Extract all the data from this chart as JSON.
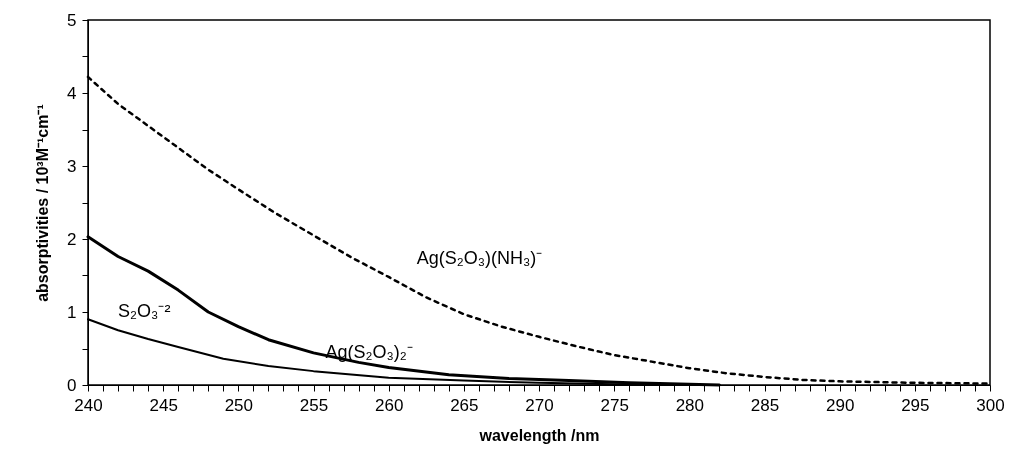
{
  "chart_data": {
    "type": "line",
    "xlabel": "wavelength /nm",
    "ylabel": "absorptivities / 10³M⁻¹cm⁻¹",
    "xlim": [
      240,
      300
    ],
    "ylim": [
      0,
      5
    ],
    "xticks": [
      240,
      {
        "value": 241,
        "label": null
      },
      {
        "value": 242,
        "label": null
      },
      {
        "value": 243,
        "label": null
      },
      {
        "value": 244,
        "label": null
      },
      245,
      {
        "value": 246,
        "label": null
      },
      {
        "value": 247,
        "label": null
      },
      {
        "value": 248,
        "label": null
      },
      {
        "value": 249,
        "label": null
      },
      250,
      {
        "value": 251,
        "label": null
      },
      {
        "value": 252,
        "label": null
      },
      {
        "value": 253,
        "label": null
      },
      {
        "value": 254,
        "label": null
      },
      255,
      {
        "value": 256,
        "label": null
      },
      {
        "value": 257,
        "label": null
      },
      {
        "value": 258,
        "label": null
      },
      {
        "value": 259,
        "label": null
      },
      260,
      {
        "value": 261,
        "label": null
      },
      {
        "value": 262,
        "label": null
      },
      {
        "value": 263,
        "label": null
      },
      {
        "value": 264,
        "label": null
      },
      265,
      {
        "value": 266,
        "label": null
      },
      {
        "value": 267,
        "label": null
      },
      {
        "value": 268,
        "label": null
      },
      {
        "value": 269,
        "label": null
      },
      270,
      {
        "value": 271,
        "label": null
      },
      {
        "value": 272,
        "label": null
      },
      {
        "value": 273,
        "label": null
      },
      {
        "value": 274,
        "label": null
      },
      275,
      {
        "value": 276,
        "label": null
      },
      {
        "value": 277,
        "label": null
      },
      {
        "value": 278,
        "label": null
      },
      {
        "value": 279,
        "label": null
      },
      280,
      {
        "value": 281,
        "label": null
      },
      {
        "value": 282,
        "label": null
      },
      {
        "value": 283,
        "label": null
      },
      {
        "value": 284,
        "label": null
      },
      285,
      {
        "value": 286,
        "label": null
      },
      {
        "value": 287,
        "label": null
      },
      {
        "value": 288,
        "label": null
      },
      {
        "value": 289,
        "label": null
      },
      290,
      {
        "value": 291,
        "label": null
      },
      {
        "value": 292,
        "label": null
      },
      {
        "value": 293,
        "label": null
      },
      {
        "value": 294,
        "label": null
      },
      295,
      {
        "value": 296,
        "label": null
      },
      {
        "value": 297,
        "label": null
      },
      {
        "value": 298,
        "label": null
      },
      {
        "value": 299,
        "label": null
      },
      300
    ],
    "yticks": [
      0,
      {
        "value": 0.5,
        "label": null
      },
      1,
      {
        "value": 1.5,
        "label": null
      },
      2,
      {
        "value": 2.5,
        "label": null
      },
      3,
      {
        "value": 3.5,
        "label": null
      },
      4,
      {
        "value": 4.5,
        "label": null
      },
      5
    ],
    "series": [
      {
        "name": "S₂O₃⁻²",
        "color": "#000000",
        "line_style": "solid",
        "x": [
          240,
          242,
          244,
          246,
          249,
          252,
          255,
          260,
          265,
          270,
          275,
          280
        ],
        "values": [
          0.9,
          0.75,
          0.63,
          0.52,
          0.36,
          0.26,
          0.19,
          0.1,
          0.06,
          0.03,
          0.01,
          0
        ]
      },
      {
        "name": "Ag(S₂O₃)₂⁻",
        "color": "#000000",
        "line_style": "solid",
        "x": [
          240,
          242,
          244,
          246,
          248,
          250,
          252,
          255,
          258,
          260,
          264,
          268,
          272,
          276,
          280,
          282
        ],
        "values": [
          2.03,
          1.76,
          1.56,
          1.3,
          1.0,
          0.8,
          0.62,
          0.44,
          0.31,
          0.24,
          0.14,
          0.09,
          0.06,
          0.03,
          0.01,
          0
        ]
      },
      {
        "name": "Ag(S₂O₃)(NH₃)⁻",
        "color": "#000000",
        "line_style": "dotted",
        "x": [
          240,
          242,
          245,
          248,
          250,
          252.5,
          255,
          257.5,
          260,
          262.5,
          265,
          267.5,
          270,
          272.5,
          275,
          277.5,
          280,
          282.5,
          285,
          287.5,
          290,
          295,
          300
        ],
        "values": [
          4.22,
          3.85,
          3.4,
          2.95,
          2.68,
          2.35,
          2.05,
          1.75,
          1.48,
          1.2,
          0.97,
          0.8,
          0.66,
          0.53,
          0.41,
          0.32,
          0.23,
          0.16,
          0.11,
          0.07,
          0.05,
          0.03,
          0.02
        ]
      }
    ]
  }
}
